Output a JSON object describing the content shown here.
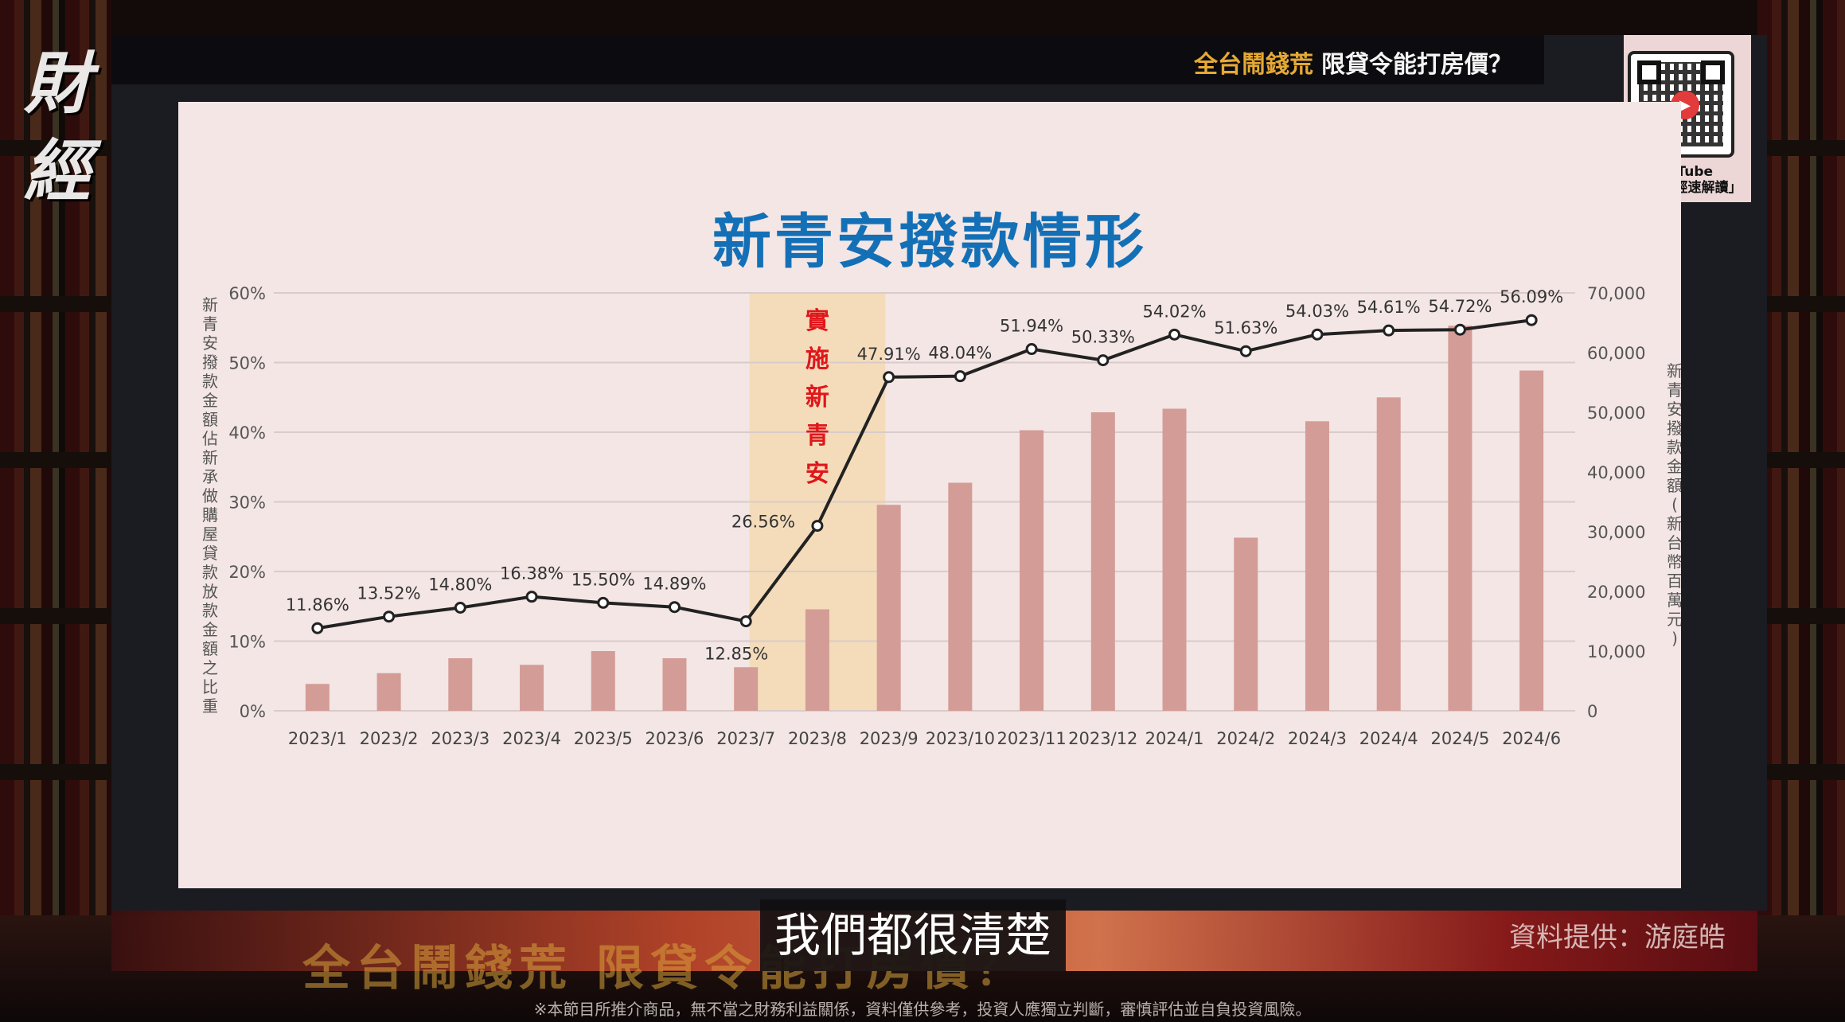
{
  "header": {
    "headline_highlight": "全台鬧錢荒",
    "headline_rest": "限貸令能打房價？"
  },
  "qr": {
    "platform": "YouTube",
    "channel": "「早晨財經速解讀」"
  },
  "caption": "我們都很清楚",
  "source": "資料提供：游庭皓",
  "disclaimer": "※本節目所推介商品，無不當之財務利益關係，資料僅供參考，投資人應獨立判斷，審慎評估並自負投資風險。",
  "colors": {
    "bar": "#d49c96",
    "line": "#222222",
    "highlight": "#f4d7a8",
    "title": "#1470b6",
    "annotation": "#e0161b"
  },
  "chart_data": {
    "type": "bar",
    "title": "新青安撥款情形",
    "categories": [
      "2023/1",
      "2023/2",
      "2023/3",
      "2023/4",
      "2023/5",
      "2023/6",
      "2023/7",
      "2023/8",
      "2023/9",
      "2023/10",
      "2023/11",
      "2023/12",
      "2024/1",
      "2024/2",
      "2024/3",
      "2024/4",
      "2024/5",
      "2024/6"
    ],
    "series": [
      {
        "type": "bar",
        "axis": "right",
        "values": [
          4500,
          6300,
          8800,
          7700,
          10000,
          8800,
          7300,
          17000,
          34500,
          38200,
          47000,
          50000,
          50600,
          29000,
          48500,
          52500,
          64500,
          57000
        ]
      },
      {
        "type": "line",
        "axis": "left",
        "values": [
          11.86,
          13.52,
          14.8,
          16.38,
          15.5,
          14.89,
          12.85,
          26.56,
          47.91,
          48.04,
          51.94,
          50.33,
          54.02,
          51.63,
          54.03,
          54.61,
          54.72,
          56.09
        ],
        "labels": [
          "11.86%",
          "13.52%",
          "14.80%",
          "16.38%",
          "15.50%",
          "14.89%",
          "12.85%",
          "26.56%",
          "47.91%",
          "48.04%",
          "51.94%",
          "50.33%",
          "54.02%",
          "51.63%",
          "54.03%",
          "54.61%",
          "54.72%",
          "56.09%"
        ]
      }
    ],
    "ylabel_left": "新青安撥款金額佔新承做購屋貸款放款金額之比重",
    "ylabel_right": "新青安撥款金額(新台幣百萬元)",
    "yticks_left": [
      "0%",
      "10%",
      "20%",
      "30%",
      "40%",
      "50%",
      "60%"
    ],
    "yticks_right": [
      "0",
      "10,000",
      "20,000",
      "30,000",
      "40,000",
      "50,000",
      "60,000",
      "70,000"
    ],
    "ylim_left": [
      0,
      60
    ],
    "ylim_right": [
      0,
      70000
    ],
    "annotation": {
      "text": "實施新青安",
      "category": "2023/8"
    },
    "grid": true
  }
}
